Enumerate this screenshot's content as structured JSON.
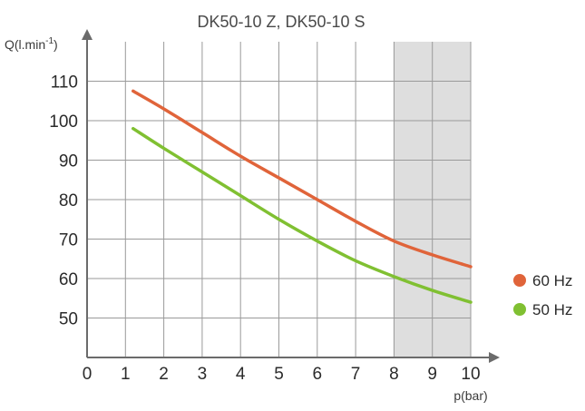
{
  "chart_data": {
    "type": "line",
    "title": "DK50-10 Z, DK50-10 S",
    "ylabel": "Q(l.min",
    "ylabel_sup": "-1",
    "ylabel_end": ")",
    "xlabel": "p(bar)",
    "xlim": [
      0,
      10
    ],
    "ylim": [
      40,
      120
    ],
    "x_ticks": [
      "0",
      "1",
      "2",
      "3",
      "4",
      "5",
      "6",
      "7",
      "8",
      "9",
      "10"
    ],
    "y_ticks": [
      "50",
      "60",
      "70",
      "80",
      "90",
      "100",
      "110"
    ],
    "y_tick_values": [
      50,
      60,
      70,
      80,
      90,
      100,
      110
    ],
    "grid": true,
    "shaded_x_range": [
      8,
      10
    ],
    "shaded_color": "#dedede",
    "legend_position": "right",
    "series": [
      {
        "name": "60 Hz",
        "color": "#e0643a",
        "x": [
          1.2,
          2,
          3,
          4,
          5,
          6,
          7,
          8,
          9,
          10
        ],
        "y": [
          107.5,
          103,
          97,
          91,
          85.5,
          80,
          74.5,
          69.5,
          66,
          63
        ]
      },
      {
        "name": "50 Hz",
        "color": "#80c032",
        "x": [
          1.2,
          2,
          3,
          4,
          5,
          6,
          7,
          8,
          9,
          10
        ],
        "y": [
          98,
          93,
          87,
          81,
          75,
          69.5,
          64.5,
          60.5,
          57,
          54
        ]
      }
    ]
  }
}
